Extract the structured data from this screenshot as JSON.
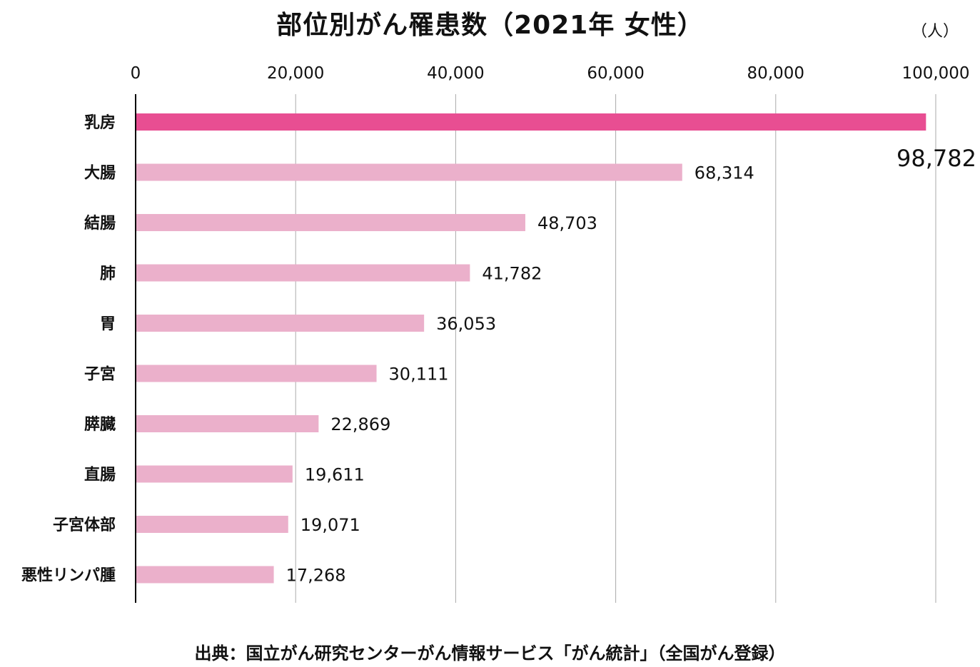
{
  "chart_data": {
    "type": "bar",
    "orientation": "horizontal",
    "title": "部位別がん罹患数（2021年 女性）",
    "unit_label": "（人）",
    "xlim": [
      0,
      100000
    ],
    "x_ticks": [
      "0",
      "20,000",
      "40,000",
      "60,000",
      "80,000",
      "100,000"
    ],
    "x_tick_values": [
      0,
      20000,
      40000,
      60000,
      80000,
      100000
    ],
    "grid": true,
    "categories": [
      "乳房",
      "大腸",
      "結腸",
      "肺",
      "胃",
      "子宮",
      "膵臓",
      "直腸",
      "子宮体部",
      "悪性リンパ腫"
    ],
    "values": [
      98782,
      68314,
      48703,
      41782,
      36053,
      30111,
      22869,
      19611,
      19071,
      17268
    ],
    "value_labels": [
      "98,782",
      "68,314",
      "48,703",
      "41,782",
      "36,053",
      "30,111",
      "22,869",
      "19,611",
      "19,071",
      "17,268"
    ],
    "highlight_index": 0,
    "colors": {
      "highlight": "#E84E92",
      "bar": "#EBB0CB",
      "grid": "#AAAAAA",
      "axis": "#000000"
    },
    "source": "出典：国立がん研究センターがん情報サービス「がん統計」（全国がん登録）"
  }
}
